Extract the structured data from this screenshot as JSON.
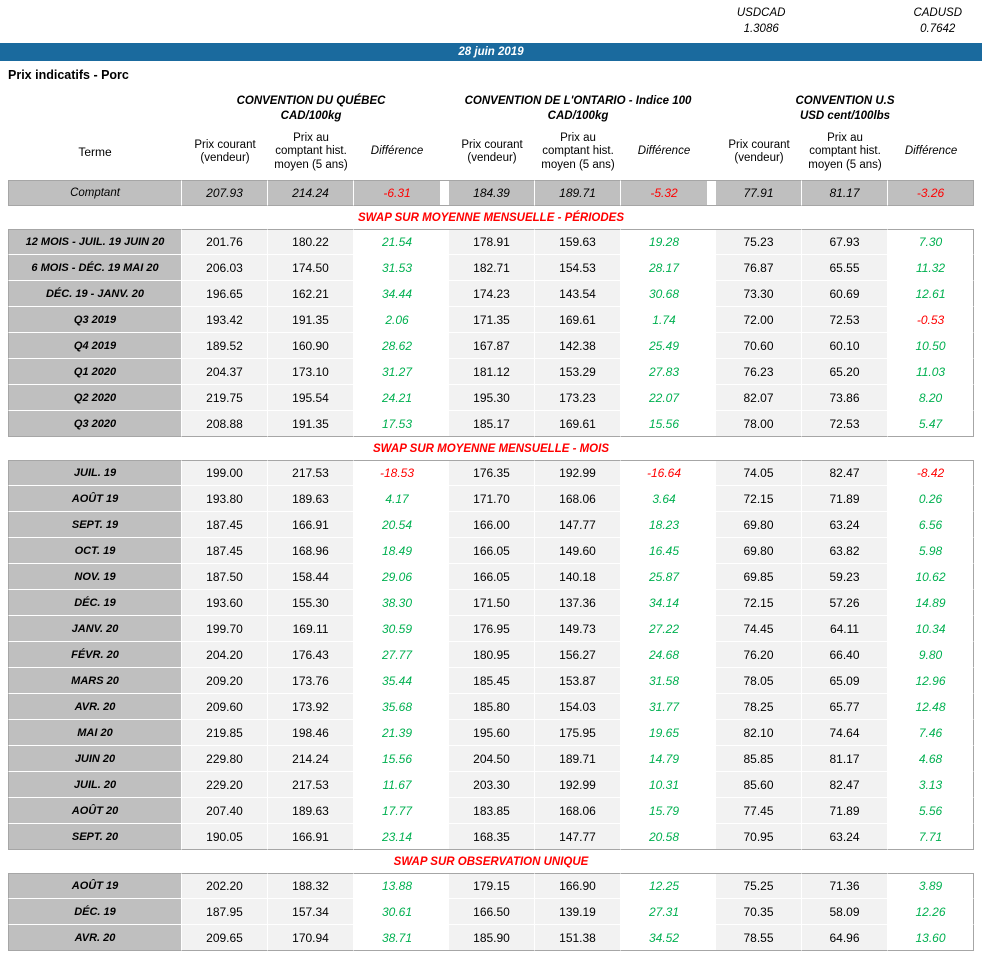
{
  "fx": {
    "usdcad_label": "USDCAD",
    "usdcad_value": "1.3086",
    "cadusd_label": "CADUSD",
    "cadusd_value": "0.7642"
  },
  "header": {
    "date": "28 juin 2019",
    "title": "Prix indicatifs - Porc"
  },
  "table": {
    "terme_header": "Terme",
    "groups": [
      {
        "name": "CONVENTION DU QUÉBEC",
        "unit": "CAD/100kg"
      },
      {
        "name": "CONVENTION DE L'ONTARIO - Indice 100",
        "unit": "CAD/100kg"
      },
      {
        "name": "CONVENTION U.S",
        "unit": "USD cent/100lbs"
      }
    ],
    "sub_columns": [
      "Prix courant (vendeur)",
      "Prix au comptant hist. moyen (5 ans)",
      "Différence"
    ],
    "comptant": {
      "label": "Comptant",
      "values": [
        "207.93",
        "214.24",
        "-6.31",
        "184.39",
        "189.71",
        "-5.32",
        "77.91",
        "81.17",
        "-3.26"
      ]
    },
    "sections": [
      {
        "title": "SWAP SUR MOYENNE MENSUELLE - PÉRIODES",
        "rows": [
          {
            "label": "12 MOIS -  JUIL. 19 JUIN 20",
            "values": [
              "201.76",
              "180.22",
              "21.54",
              "178.91",
              "159.63",
              "19.28",
              "75.23",
              "67.93",
              "7.30"
            ]
          },
          {
            "label": "6 MOIS -  DÉC. 19 MAI 20",
            "values": [
              "206.03",
              "174.50",
              "31.53",
              "182.71",
              "154.53",
              "28.17",
              "76.87",
              "65.55",
              "11.32"
            ]
          },
          {
            "label": "DÉC. 19 -  JANV. 20",
            "values": [
              "196.65",
              "162.21",
              "34.44",
              "174.23",
              "143.54",
              "30.68",
              "73.30",
              "60.69",
              "12.61"
            ]
          },
          {
            "label": "Q3 2019",
            "values": [
              "193.42",
              "191.35",
              "2.06",
              "171.35",
              "169.61",
              "1.74",
              "72.00",
              "72.53",
              "-0.53"
            ]
          },
          {
            "label": "Q4 2019",
            "values": [
              "189.52",
              "160.90",
              "28.62",
              "167.87",
              "142.38",
              "25.49",
              "70.60",
              "60.10",
              "10.50"
            ]
          },
          {
            "label": "Q1 2020",
            "values": [
              "204.37",
              "173.10",
              "31.27",
              "181.12",
              "153.29",
              "27.83",
              "76.23",
              "65.20",
              "11.03"
            ]
          },
          {
            "label": "Q2 2020",
            "values": [
              "219.75",
              "195.54",
              "24.21",
              "195.30",
              "173.23",
              "22.07",
              "82.07",
              "73.86",
              "8.20"
            ]
          },
          {
            "label": "Q3 2020",
            "values": [
              "208.88",
              "191.35",
              "17.53",
              "185.17",
              "169.61",
              "15.56",
              "78.00",
              "72.53",
              "5.47"
            ]
          }
        ]
      },
      {
        "title": "SWAP SUR MOYENNE MENSUELLE - MOIS",
        "rows": [
          {
            "label": "JUIL. 19",
            "values": [
              "199.00",
              "217.53",
              "-18.53",
              "176.35",
              "192.99",
              "-16.64",
              "74.05",
              "82.47",
              "-8.42"
            ]
          },
          {
            "label": "AOÛT 19",
            "values": [
              "193.80",
              "189.63",
              "4.17",
              "171.70",
              "168.06",
              "3.64",
              "72.15",
              "71.89",
              "0.26"
            ]
          },
          {
            "label": "SEPT. 19",
            "values": [
              "187.45",
              "166.91",
              "20.54",
              "166.00",
              "147.77",
              "18.23",
              "69.80",
              "63.24",
              "6.56"
            ]
          },
          {
            "label": "OCT. 19",
            "values": [
              "187.45",
              "168.96",
              "18.49",
              "166.05",
              "149.60",
              "16.45",
              "69.80",
              "63.82",
              "5.98"
            ]
          },
          {
            "label": "NOV. 19",
            "values": [
              "187.50",
              "158.44",
              "29.06",
              "166.05",
              "140.18",
              "25.87",
              "69.85",
              "59.23",
              "10.62"
            ]
          },
          {
            "label": "DÉC. 19",
            "values": [
              "193.60",
              "155.30",
              "38.30",
              "171.50",
              "137.36",
              "34.14",
              "72.15",
              "57.26",
              "14.89"
            ]
          },
          {
            "label": "JANV. 20",
            "values": [
              "199.70",
              "169.11",
              "30.59",
              "176.95",
              "149.73",
              "27.22",
              "74.45",
              "64.11",
              "10.34"
            ]
          },
          {
            "label": "FÉVR. 20",
            "values": [
              "204.20",
              "176.43",
              "27.77",
              "180.95",
              "156.27",
              "24.68",
              "76.20",
              "66.40",
              "9.80"
            ]
          },
          {
            "label": "MARS 20",
            "values": [
              "209.20",
              "173.76",
              "35.44",
              "185.45",
              "153.87",
              "31.58",
              "78.05",
              "65.09",
              "12.96"
            ]
          },
          {
            "label": "AVR. 20",
            "values": [
              "209.60",
              "173.92",
              "35.68",
              "185.80",
              "154.03",
              "31.77",
              "78.25",
              "65.77",
              "12.48"
            ]
          },
          {
            "label": "MAI 20",
            "values": [
              "219.85",
              "198.46",
              "21.39",
              "195.60",
              "175.95",
              "19.65",
              "82.10",
              "74.64",
              "7.46"
            ]
          },
          {
            "label": "JUIN 20",
            "values": [
              "229.80",
              "214.24",
              "15.56",
              "204.50",
              "189.71",
              "14.79",
              "85.85",
              "81.17",
              "4.68"
            ]
          },
          {
            "label": "JUIL. 20",
            "values": [
              "229.20",
              "217.53",
              "11.67",
              "203.30",
              "192.99",
              "10.31",
              "85.60",
              "82.47",
              "3.13"
            ]
          },
          {
            "label": "AOÛT 20",
            "values": [
              "207.40",
              "189.63",
              "17.77",
              "183.85",
              "168.06",
              "15.79",
              "77.45",
              "71.89",
              "5.56"
            ]
          },
          {
            "label": "SEPT. 20",
            "values": [
              "190.05",
              "166.91",
              "23.14",
              "168.35",
              "147.77",
              "20.58",
              "70.95",
              "63.24",
              "7.71"
            ]
          }
        ]
      },
      {
        "title": "SWAP SUR OBSERVATION UNIQUE",
        "rows": [
          {
            "label": "AOÛT 19",
            "values": [
              "202.20",
              "188.32",
              "13.88",
              "179.15",
              "166.90",
              "12.25",
              "75.25",
              "71.36",
              "3.89"
            ]
          },
          {
            "label": "DÉC. 19",
            "values": [
              "187.95",
              "157.34",
              "30.61",
              "166.50",
              "139.19",
              "27.31",
              "70.35",
              "58.09",
              "12.26"
            ]
          },
          {
            "label": "AVR. 20",
            "values": [
              "209.65",
              "170.94",
              "38.71",
              "185.90",
              "151.38",
              "34.52",
              "78.55",
              "64.96",
              "13.60"
            ]
          }
        ]
      }
    ]
  },
  "colors": {
    "header_bar": "#1A6A9E",
    "label_gray": "#BFBFBF",
    "cell_gray": "#F2F2F2",
    "positive": "#00B050",
    "negative": "#FF0000",
    "section_title": "#FF0000",
    "block_border": "#A6A6A6"
  }
}
